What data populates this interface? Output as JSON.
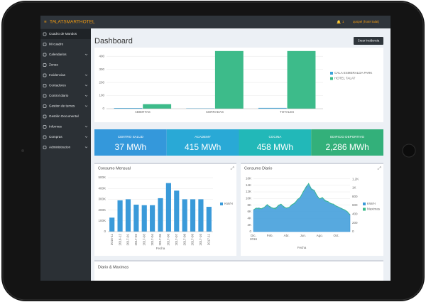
{
  "header": {
    "brand": "TALATSMARTHOTEL",
    "notifications": "1",
    "user": "quspel (hotel talat)"
  },
  "sidebar": [
    {
      "label": "Cuadro de Mandos",
      "submenu": false
    },
    {
      "label": "Mi cuadro",
      "submenu": false
    },
    {
      "label": "Calendarios",
      "submenu": true
    },
    {
      "label": "Zonas",
      "submenu": false
    },
    {
      "label": "Incidencias",
      "submenu": true
    },
    {
      "label": "Contadores",
      "submenu": true
    },
    {
      "label": "Control diario",
      "submenu": true
    },
    {
      "label": "Gestion de turnos",
      "submenu": true
    },
    {
      "label": "Gestión Documental",
      "submenu": false
    },
    {
      "label": "Informes",
      "submenu": true
    },
    {
      "label": "Compras",
      "submenu": true
    },
    {
      "label": "Administracion",
      "submenu": true
    }
  ],
  "page_title": "Dashboard",
  "button": "Crear Incidencia",
  "kpis": [
    {
      "label": "CENTRO SALUD",
      "value": "37 MWh",
      "color": "#3498db"
    },
    {
      "label": "ACADEMY",
      "value": "415 MWh",
      "color": "#29a9d6"
    },
    {
      "label": "COCINA",
      "value": "458 MWh",
      "color": "#22b8b8"
    },
    {
      "label": "EDIFICIO DEPORTIVO",
      "value": "2,286 MWh",
      "color": "#33b07a"
    }
  ],
  "chart_data": [
    {
      "type": "bar",
      "categories": [
        "ABIERTAS",
        "CERRADAS",
        "TOTALES"
      ],
      "series": [
        {
          "name": "CALA ESMERALDA PARK",
          "color": "#3aa3d9",
          "values": [
            5,
            3,
            6
          ]
        },
        {
          "name": "HOTEL TALAT",
          "color": "#3dbb8a",
          "values": [
            35,
            440,
            440
          ]
        }
      ],
      "ylim": [
        0,
        450
      ],
      "yticks": [
        0,
        100,
        200,
        300,
        400
      ],
      "grid": true,
      "legend": "right"
    },
    {
      "type": "bar",
      "title": "Consumo Mensual",
      "xlabel": "Fecha",
      "categories": [
        "2016-11",
        "2016-12",
        "2017-01",
        "2017-02",
        "2017-03",
        "2017-04",
        "2017-05",
        "2017-06",
        "2017-07",
        "2017-08",
        "2017-09",
        "2017-10",
        "2017-11"
      ],
      "series": [
        {
          "name": "KW/H",
          "color": "#3a9ad9",
          "values": [
            130000,
            290000,
            300000,
            250000,
            245000,
            245000,
            310000,
            450000,
            380000,
            300000,
            300000,
            300000,
            230000
          ]
        }
      ],
      "ylim": [
        0,
        520000
      ],
      "yticks": [
        0,
        {
          "value": 100000,
          "label": "100K"
        },
        {
          "value": 200000,
          "label": "200K"
        },
        {
          "value": 300000,
          "label": "300K"
        },
        {
          "value": 400000,
          "label": "400K"
        },
        {
          "value": 500000,
          "label": "500K"
        }
      ],
      "grid": true,
      "legend": "right"
    },
    {
      "type": "line",
      "title": "Consumo Diario",
      "xlabel": "Fecha",
      "categories": [
        "Dic. 2016",
        null,
        null,
        null,
        null,
        null,
        "Feb.",
        null,
        null,
        null,
        null,
        null,
        "Abr.",
        null,
        null,
        null,
        null,
        null,
        "Jun.",
        null,
        null,
        null,
        null,
        null,
        "Ago.",
        null,
        null,
        null,
        null,
        null,
        "Oct.",
        null,
        null,
        null,
        null,
        null
      ],
      "series": [
        {
          "name": "KW/H",
          "color": "#3a9ad9",
          "kind": "area",
          "values": [
            6500,
            7000,
            7200,
            6800,
            7400,
            8000,
            7600,
            7000,
            7200,
            7800,
            8200,
            7600,
            7000,
            7400,
            8000,
            8800,
            9600,
            10500,
            12000,
            13500,
            14500,
            13000,
            12500,
            11000,
            9800,
            10200,
            9500,
            9000,
            8600,
            8200,
            7800,
            7400,
            7000,
            6600,
            6000,
            5200
          ]
        },
        {
          "name": "Maximas",
          "color": "#3dbb8a",
          "kind": "line",
          "axis": "y2",
          "values": [
            500,
            540,
            520,
            530,
            560,
            620,
            560,
            540,
            520,
            600,
            630,
            560,
            540,
            560,
            620,
            650,
            740,
            780,
            910,
            1000,
            1100,
            960,
            950,
            820,
            750,
            780,
            700,
            690,
            640,
            630,
            580,
            560,
            520,
            500,
            460,
            380
          ]
        }
      ],
      "ylim": [
        0,
        16500
      ],
      "yticks": [
        0,
        {
          "value": 2000,
          "label": "2K"
        },
        {
          "value": 4000,
          "label": "4K"
        },
        {
          "value": 6000,
          "label": "6K"
        },
        {
          "value": 8000,
          "label": "8K"
        },
        {
          "value": 10000,
          "label": "10K"
        },
        {
          "value": 12000,
          "label": "12K"
        },
        {
          "value": 14000,
          "label": "14K"
        },
        {
          "value": 16000,
          "label": "16K"
        }
      ],
      "y2lim": [
        0,
        1250
      ],
      "y2ticks": [
        0,
        200,
        400,
        600,
        800,
        {
          "value": 1000,
          "label": "1K"
        },
        {
          "value": 1200,
          "label": "1,2K"
        }
      ],
      "grid": true,
      "legend": "right"
    }
  ],
  "bottom_panel": {
    "title": "Diario & Maximas"
  }
}
